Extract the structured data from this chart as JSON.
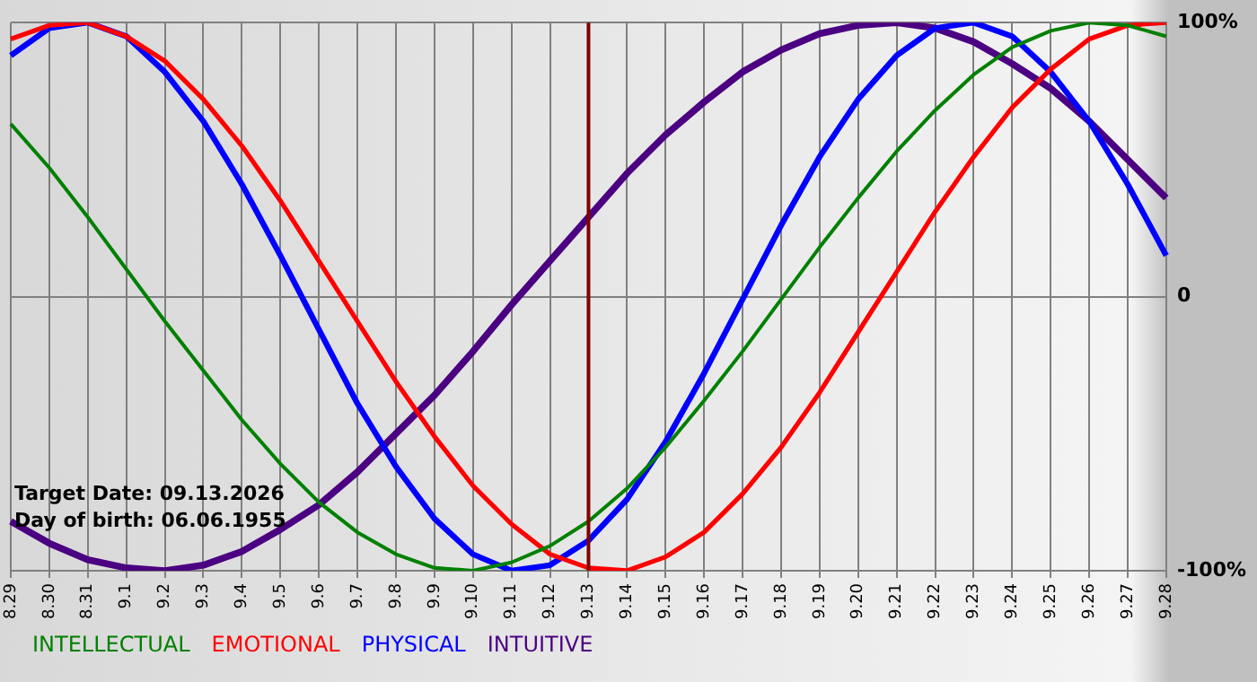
{
  "chart_data": {
    "type": "line",
    "categories": [
      "8.29",
      "8.30",
      "8.31",
      "9.1",
      "9.2",
      "9.3",
      "9.4",
      "9.5",
      "9.6",
      "9.7",
      "9.8",
      "9.9",
      "9.10",
      "9.11",
      "9.12",
      "9.13",
      "9.14",
      "9.15",
      "9.16",
      "9.17",
      "9.18",
      "9.19",
      "9.20",
      "9.21",
      "9.22",
      "9.23",
      "9.24",
      "9.25",
      "9.26",
      "9.27",
      "9.28"
    ],
    "series": [
      {
        "name": "INTELLECTUAL",
        "color": "#008000",
        "values": [
          63,
          47,
          29,
          10,
          -9,
          -27,
          -45,
          -61,
          -75,
          -86,
          -94,
          -99,
          -100,
          -97,
          -91,
          -82,
          -70,
          -55,
          -38,
          -20,
          -1,
          18,
          36,
          53,
          68,
          81,
          91,
          97,
          100,
          99,
          95
        ]
      },
      {
        "name": "EMOTIONAL",
        "color": "#ff0000",
        "values": [
          94,
          99,
          100,
          95,
          86,
          72,
          55,
          35,
          13,
          -9,
          -31,
          -51,
          -69,
          -83,
          -94,
          -99,
          -100,
          -95,
          -86,
          -72,
          -55,
          -35,
          -13,
          9,
          31,
          51,
          69,
          83,
          94,
          99,
          100
        ]
      },
      {
        "name": "PHYSICAL",
        "color": "#0000ff",
        "values": [
          88,
          98,
          100,
          95,
          82,
          64,
          41,
          15,
          -12,
          -39,
          -62,
          -81,
          -94,
          -100,
          -98,
          -89,
          -74,
          -53,
          -28,
          -1,
          26,
          51,
          72,
          88,
          98,
          100,
          95,
          82,
          64,
          41,
          15
        ]
      },
      {
        "name": "INTUITIVE",
        "color": "#4b0082",
        "values": [
          -82,
          -90,
          -96,
          -99,
          -100,
          -98,
          -93,
          -85,
          -76,
          -64,
          -50,
          -36,
          -20,
          -3,
          13,
          29,
          45,
          59,
          71,
          82,
          90,
          96,
          99,
          100,
          98,
          93,
          85,
          76,
          64,
          50,
          36
        ]
      }
    ],
    "ylim": [
      -100,
      100
    ],
    "yticks": [
      {
        "value": 100,
        "label": "100%"
      },
      0,
      {
        "value": -100,
        "label": "-100%"
      }
    ],
    "ref_lines": [
      {
        "axis": "x",
        "value": "9.13",
        "color": "#800000"
      }
    ],
    "annotations": [
      "Target Date: 09.13.2026",
      "Day of birth: 06.06.1955"
    ],
    "grid": true,
    "legend": "bottom left",
    "marker": "none",
    "line_style": "solid"
  }
}
